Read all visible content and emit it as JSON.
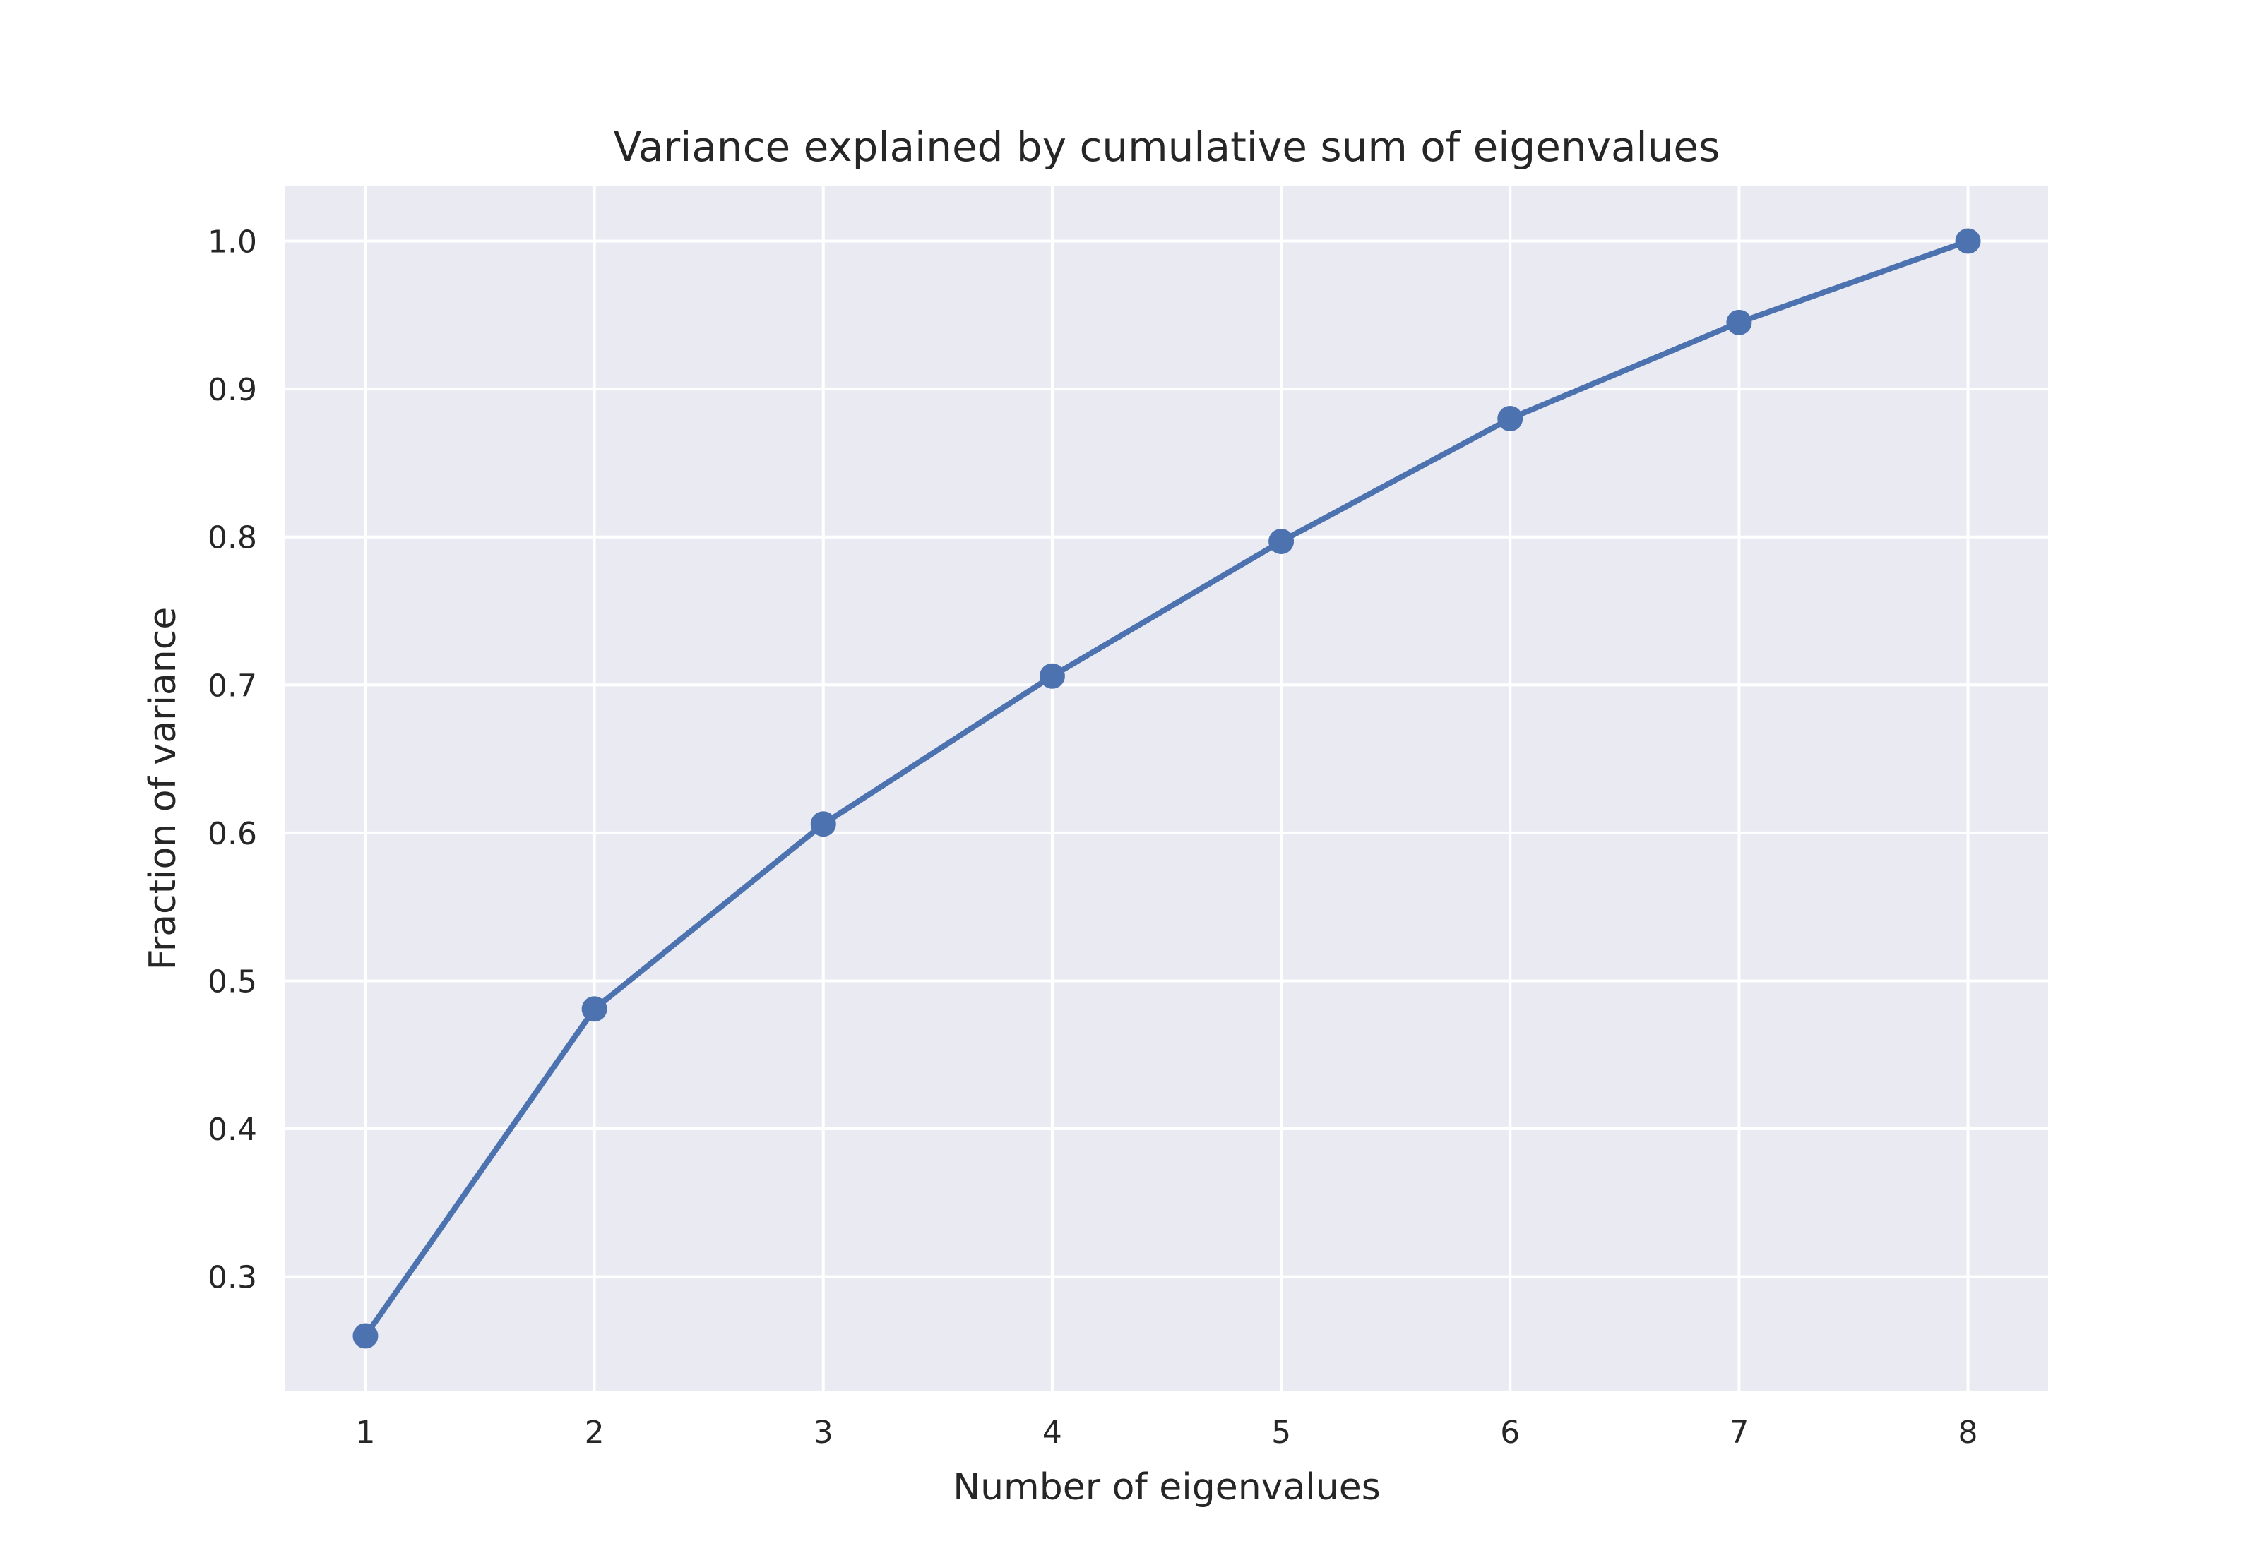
{
  "chart_data": {
    "type": "line",
    "title": "Variance explained by cumulative sum of eigenvalues",
    "xlabel": "Number of eigenvalues",
    "ylabel": "Fraction of variance",
    "x": [
      1,
      2,
      3,
      4,
      5,
      6,
      7,
      8
    ],
    "series": [
      {
        "values": [
          0.26,
          0.481,
          0.606,
          0.706,
          0.797,
          0.88,
          0.945,
          1.0
        ],
        "color": "#4c72b0",
        "marker": "circle"
      }
    ],
    "xticks": [
      "1",
      "2",
      "3",
      "4",
      "5",
      "6",
      "7",
      "8"
    ],
    "yticks": [
      "0.3",
      "0.4",
      "0.5",
      "0.6",
      "0.7",
      "0.8",
      "0.9",
      "1.0"
    ],
    "xlim": [
      0.65,
      8.35
    ],
    "ylim": [
      0.223,
      1.037
    ],
    "grid": true,
    "background": "#eaeaf2"
  }
}
